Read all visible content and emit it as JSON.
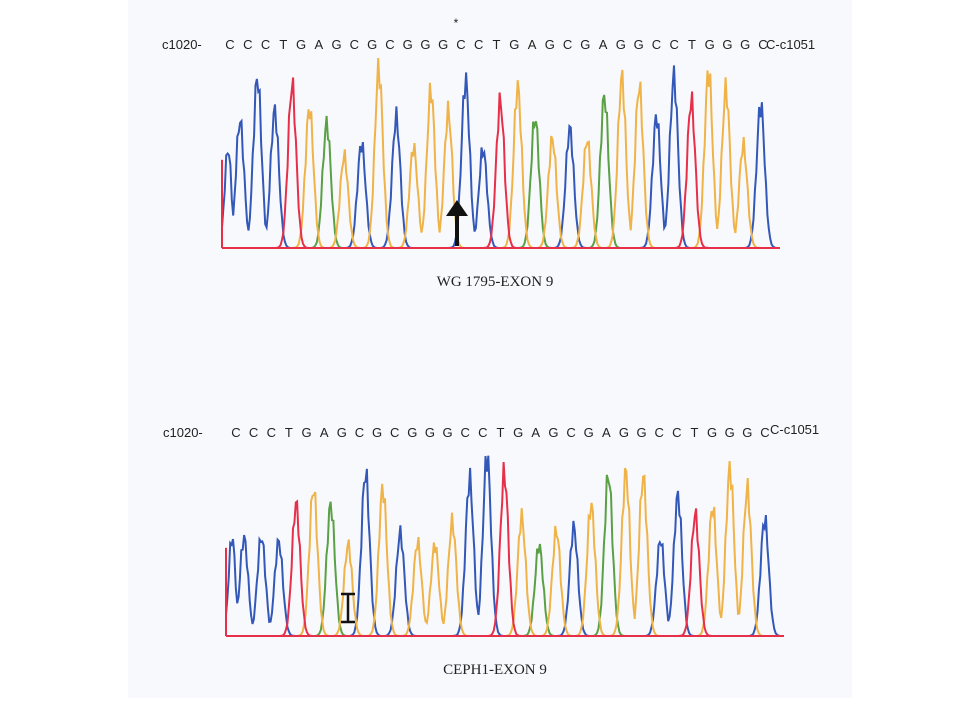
{
  "figure": {
    "colors": {
      "A": "#5aa044",
      "C": "#3458b8",
      "G": "#f0b347",
      "T": "#e6304a",
      "text": "#222222"
    },
    "panels": [
      {
        "start_label": "c1020-",
        "end_label": "c1051",
        "bases": [
          "C",
          "C",
          "C",
          "T",
          "G",
          "A",
          "G",
          "C",
          "G",
          "C",
          "G",
          "G",
          "G",
          "C",
          "C",
          "T",
          "G",
          "A",
          "G",
          "C",
          "G",
          "A",
          "G",
          "G",
          "C",
          "C",
          "T",
          "G",
          "G",
          "G",
          "C"
        ],
        "star_marker": "*",
        "arrow_marker": "up-arrow-icon",
        "caption": "WG 1795-EXON 9"
      },
      {
        "start_label": "c1020-",
        "end_label": "c1051",
        "bases": [
          "C",
          "C",
          "C",
          "T",
          "G",
          "A",
          "G",
          "C",
          "G",
          "C",
          "G",
          "G",
          "G",
          "C",
          "C",
          "T",
          "G",
          "A",
          "G",
          "C",
          "G",
          "A",
          "G",
          "G",
          "C",
          "C",
          "T",
          "G",
          "G",
          "G",
          "C"
        ],
        "marker": "bracket-marker-icon",
        "caption": "CEPH1-EXON 9"
      }
    ]
  }
}
